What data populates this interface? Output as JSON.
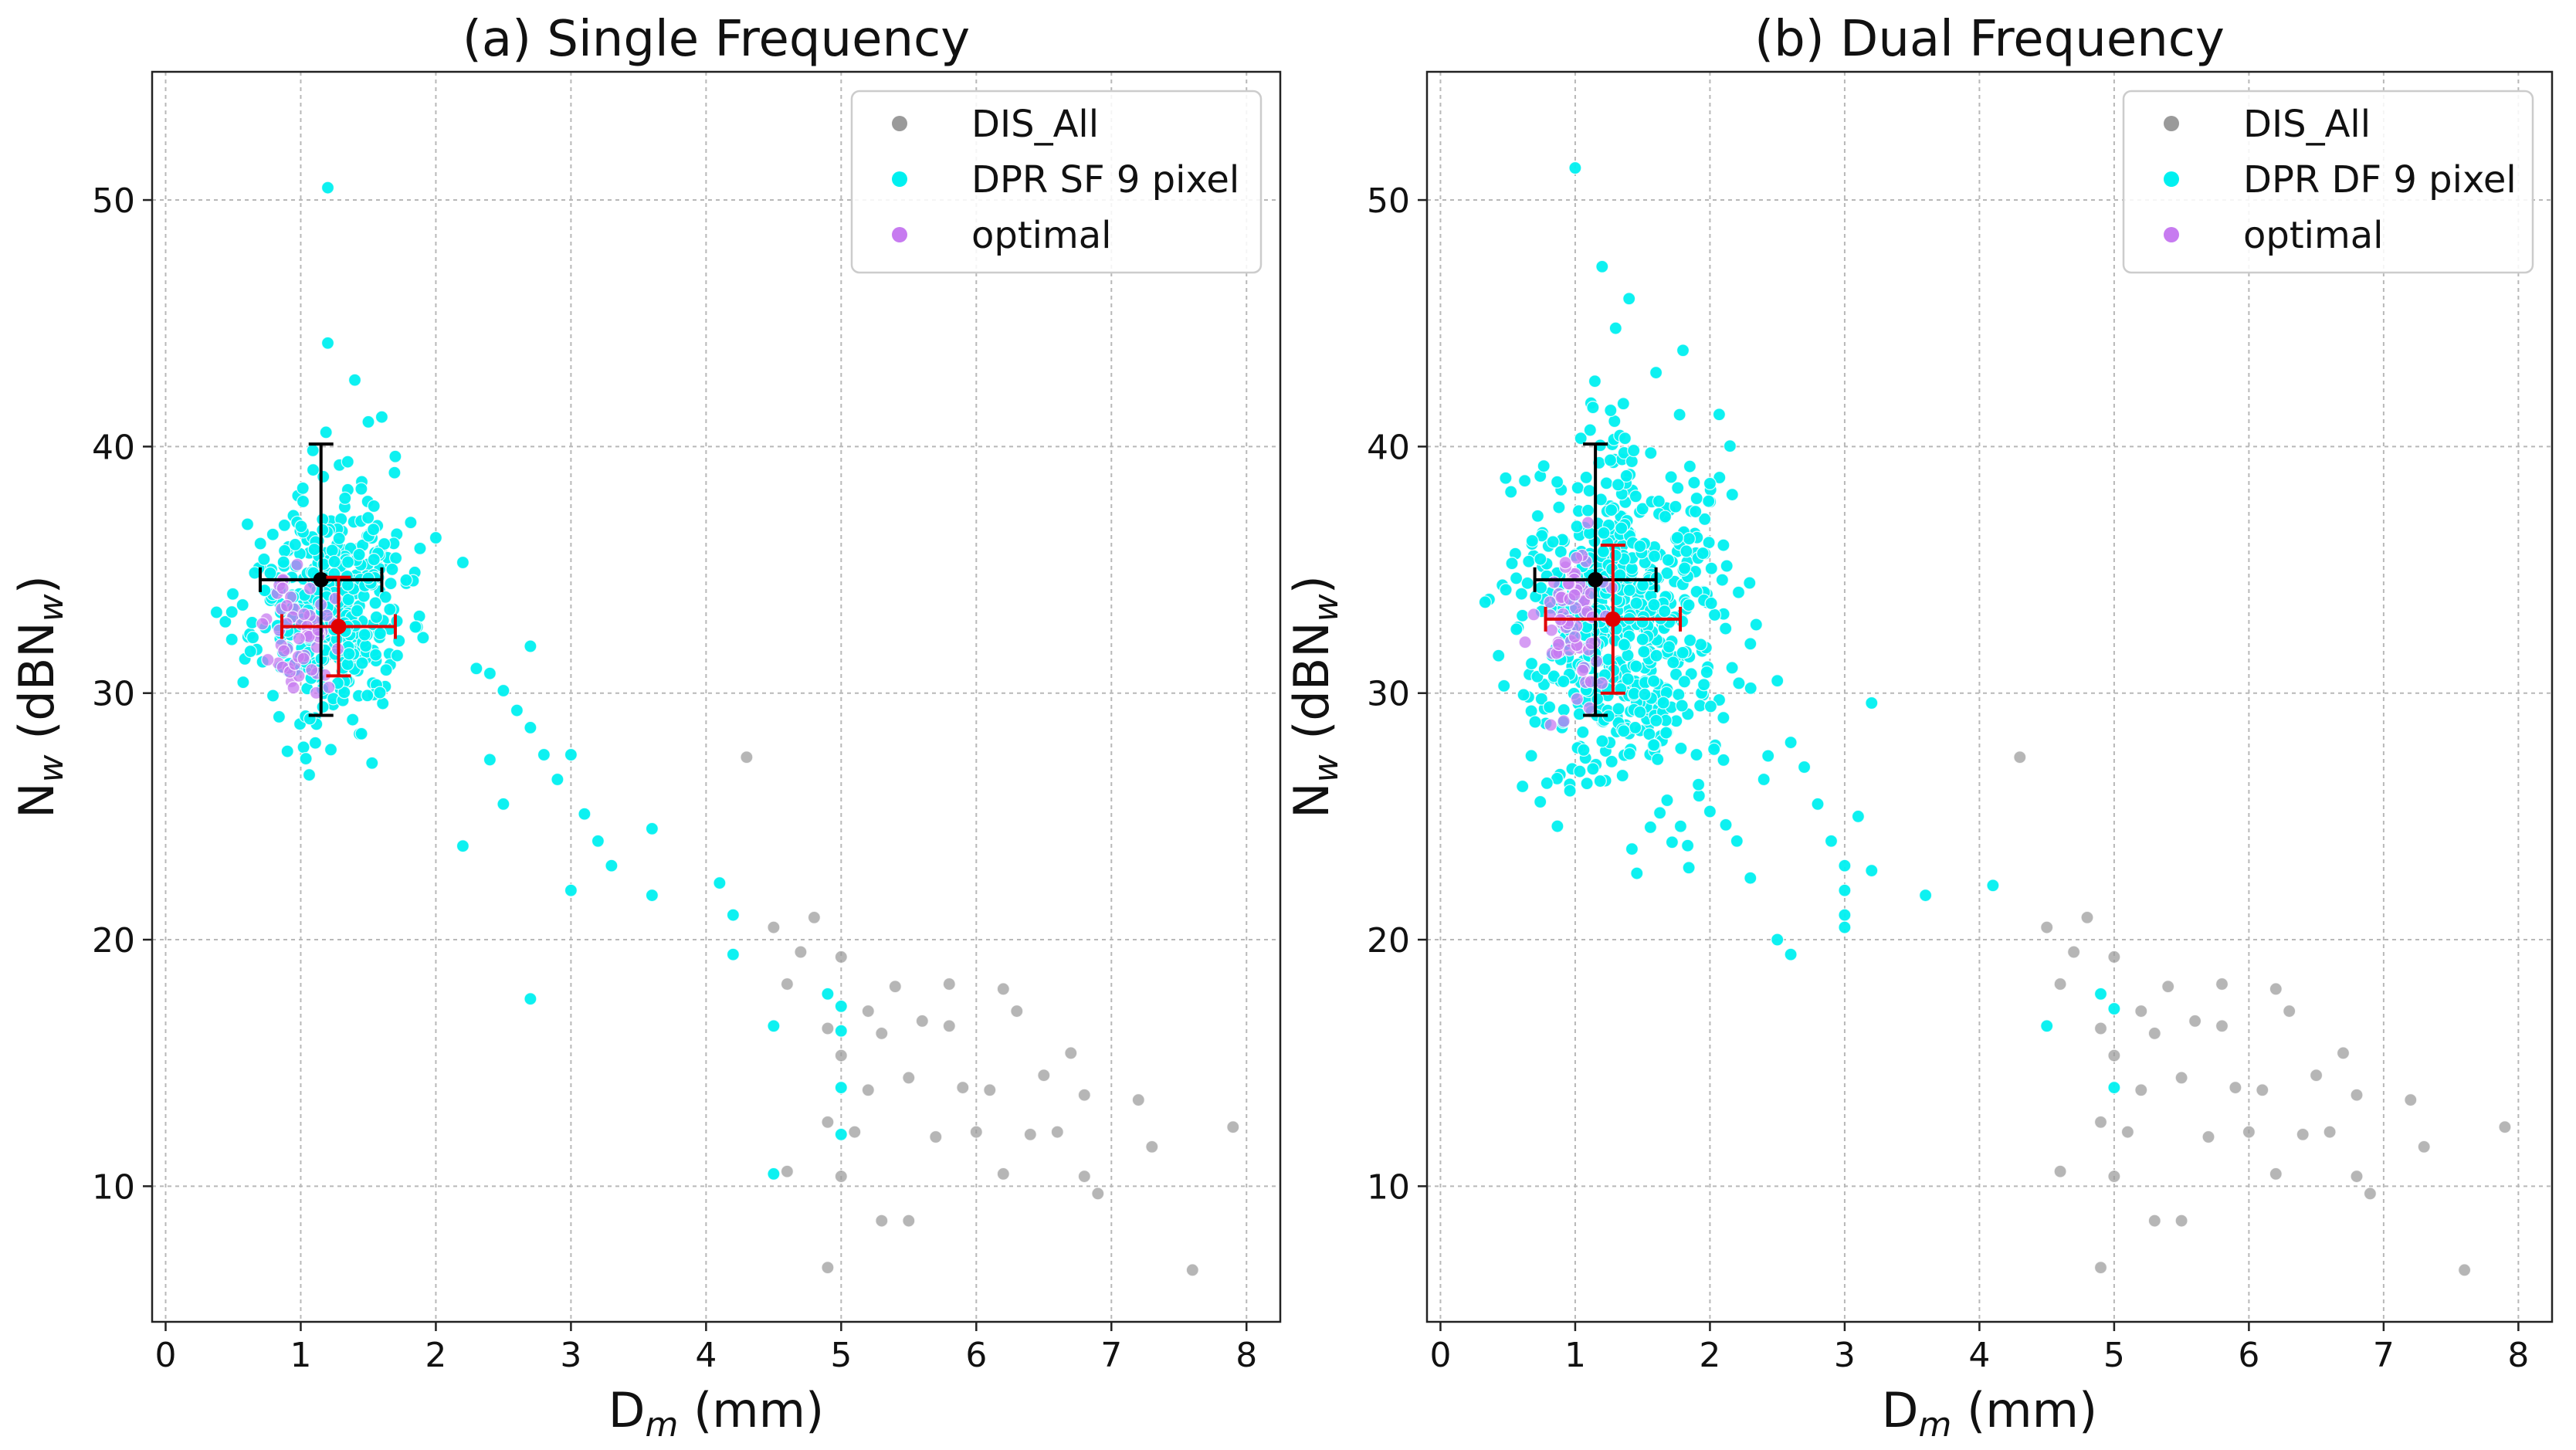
{
  "chart_data": [
    {
      "type": "scatter",
      "title": "(a) Single Frequency",
      "xlabel": {
        "main": "D",
        "sub": "m",
        "unit": " (mm)"
      },
      "ylabel": {
        "main": "N",
        "sub": "w",
        "mid": " (dBN",
        "sub2": "w",
        "end": ")"
      },
      "xlim": [
        -0.1,
        8.25
      ],
      "ylim": [
        4.5,
        55.2
      ],
      "xticks": [
        0,
        1,
        2,
        3,
        4,
        5,
        6,
        7,
        8
      ],
      "yticks": [
        10,
        20,
        30,
        40,
        50
      ],
      "grid": true,
      "legend_position": "top-right",
      "colors": {
        "DIS_All": "#9a9a9a",
        "dpr": "#00f0f0",
        "optimal": "#c77bf0",
        "mean_all": "#000000",
        "mean_dpr": "#e00000"
      },
      "series": [
        {
          "name": "DIS_All",
          "role": "DIS_All",
          "cloud": {
            "count": 9000,
            "dm_min": 0.35,
            "dm_max": 4.6,
            "seed": 11
          },
          "outliers": [
            [
              4.3,
              27.4
            ],
            [
              4.5,
              20.5
            ],
            [
              4.6,
              18.2
            ],
            [
              4.7,
              19.5
            ],
            [
              4.8,
              20.9
            ],
            [
              4.9,
              16.4
            ],
            [
              4.9,
              6.7
            ],
            [
              5.0,
              19.3
            ],
            [
              5.0,
              15.3
            ],
            [
              5.1,
              12.2
            ],
            [
              5.2,
              13.9
            ],
            [
              5.2,
              17.1
            ],
            [
              5.3,
              16.2
            ],
            [
              5.3,
              8.6
            ],
            [
              5.4,
              18.1
            ],
            [
              5.5,
              14.4
            ],
            [
              5.5,
              8.6
            ],
            [
              5.6,
              16.7
            ],
            [
              5.8,
              16.5
            ],
            [
              5.8,
              18.2
            ],
            [
              5.7,
              12.0
            ],
            [
              5.9,
              14.0
            ],
            [
              6.0,
              12.2
            ],
            [
              6.1,
              13.9
            ],
            [
              6.2,
              18.0
            ],
            [
              6.2,
              10.5
            ],
            [
              6.3,
              17.1
            ],
            [
              6.4,
              12.1
            ],
            [
              6.5,
              14.5
            ],
            [
              6.6,
              12.2
            ],
            [
              6.7,
              15.4
            ],
            [
              6.8,
              13.7
            ],
            [
              6.8,
              10.4
            ],
            [
              6.9,
              9.7
            ],
            [
              7.2,
              13.5
            ],
            [
              7.3,
              11.6
            ],
            [
              7.6,
              6.6
            ],
            [
              7.9,
              12.4
            ],
            [
              5.0,
              10.4
            ],
            [
              4.6,
              10.6
            ],
            [
              4.9,
              12.6
            ]
          ]
        },
        {
          "name": "DPR SF 9 pixel",
          "role": "dpr",
          "cloud": {
            "count": 420,
            "cx": 1.2,
            "cy": 33.5,
            "sx": 0.28,
            "sy": 2.3,
            "seed": 23
          },
          "points": [
            [
              1.2,
              50.5
            ],
            [
              1.2,
              44.2
            ],
            [
              1.4,
              42.7
            ],
            [
              1.5,
              41.0
            ],
            [
              1.6,
              41.2
            ],
            [
              1.7,
              39.6
            ],
            [
              2.0,
              36.3
            ],
            [
              2.2,
              35.3
            ],
            [
              2.3,
              31.0
            ],
            [
              2.4,
              30.8
            ],
            [
              2.5,
              30.1
            ],
            [
              2.6,
              29.3
            ],
            [
              2.7,
              31.9
            ],
            [
              2.7,
              28.6
            ],
            [
              2.8,
              27.5
            ],
            [
              2.9,
              26.5
            ],
            [
              3.0,
              27.5
            ],
            [
              3.1,
              25.1
            ],
            [
              3.2,
              24.0
            ],
            [
              3.3,
              23.0
            ],
            [
              3.6,
              24.5
            ],
            [
              3.6,
              21.8
            ],
            [
              3.0,
              22.0
            ],
            [
              2.5,
              25.5
            ],
            [
              2.2,
              23.8
            ],
            [
              4.1,
              22.3
            ],
            [
              4.2,
              21.0
            ],
            [
              4.2,
              19.4
            ],
            [
              4.5,
              16.5
            ],
            [
              4.5,
              10.5
            ],
            [
              4.9,
              17.8
            ],
            [
              5.0,
              17.3
            ],
            [
              5.0,
              16.3
            ],
            [
              5.0,
              14.0
            ],
            [
              5.0,
              12.1
            ],
            [
              2.7,
              17.6
            ],
            [
              2.4,
              27.3
            ]
          ]
        },
        {
          "name": "optimal",
          "role": "optimal",
          "cloud": {
            "count": 55,
            "cx": 1.0,
            "cy": 32.3,
            "sx": 0.12,
            "sy": 1.2,
            "seed": 37
          },
          "points": []
        }
      ],
      "error_bars": [
        {
          "role": "mean_all",
          "x": 1.15,
          "y": 34.6,
          "xerr": 0.45,
          "yerr": 5.5
        },
        {
          "role": "mean_dpr",
          "x": 1.28,
          "y": 32.7,
          "xerr": 0.42,
          "yerr": 2.0
        }
      ]
    },
    {
      "type": "scatter",
      "title": "(b) Dual Frequency",
      "xlabel": {
        "main": "D",
        "sub": "m",
        "unit": " (mm)"
      },
      "ylabel": {
        "main": "N",
        "sub": "w",
        "mid": " (dBN",
        "sub2": "w",
        "end": ")"
      },
      "xlim": [
        -0.1,
        8.25
      ],
      "ylim": [
        4.5,
        55.2
      ],
      "xticks": [
        0,
        1,
        2,
        3,
        4,
        5,
        6,
        7,
        8
      ],
      "yticks": [
        10,
        20,
        30,
        40,
        50
      ],
      "grid": true,
      "legend_position": "top-right",
      "colors": {
        "DIS_All": "#9a9a9a",
        "dpr": "#00f0f0",
        "optimal": "#c77bf0",
        "mean_all": "#000000",
        "mean_dpr": "#e00000"
      },
      "series": [
        {
          "name": "DIS_All",
          "role": "DIS_All",
          "cloud": {
            "count": 9000,
            "dm_min": 0.35,
            "dm_max": 4.6,
            "seed": 11
          },
          "outliers": [
            [
              4.3,
              27.4
            ],
            [
              4.5,
              20.5
            ],
            [
              4.6,
              18.2
            ],
            [
              4.7,
              19.5
            ],
            [
              4.8,
              20.9
            ],
            [
              4.9,
              16.4
            ],
            [
              4.9,
              6.7
            ],
            [
              5.0,
              19.3
            ],
            [
              5.0,
              15.3
            ],
            [
              5.1,
              12.2
            ],
            [
              5.2,
              13.9
            ],
            [
              5.2,
              17.1
            ],
            [
              5.3,
              16.2
            ],
            [
              5.3,
              8.6
            ],
            [
              5.4,
              18.1
            ],
            [
              5.5,
              14.4
            ],
            [
              5.5,
              8.6
            ],
            [
              5.6,
              16.7
            ],
            [
              5.8,
              16.5
            ],
            [
              5.8,
              18.2
            ],
            [
              5.7,
              12.0
            ],
            [
              5.9,
              14.0
            ],
            [
              6.0,
              12.2
            ],
            [
              6.1,
              13.9
            ],
            [
              6.2,
              18.0
            ],
            [
              6.2,
              10.5
            ],
            [
              6.3,
              17.1
            ],
            [
              6.4,
              12.1
            ],
            [
              6.5,
              14.5
            ],
            [
              6.6,
              12.2
            ],
            [
              6.7,
              15.4
            ],
            [
              6.8,
              13.7
            ],
            [
              6.8,
              10.4
            ],
            [
              6.9,
              9.7
            ],
            [
              7.2,
              13.5
            ],
            [
              7.3,
              11.6
            ],
            [
              7.6,
              6.6
            ],
            [
              7.9,
              12.4
            ],
            [
              5.0,
              10.4
            ],
            [
              4.6,
              10.6
            ],
            [
              4.9,
              12.6
            ]
          ]
        },
        {
          "name": "DPR DF 9 pixel",
          "role": "dpr",
          "cloud": {
            "count": 650,
            "cx": 1.35,
            "cy": 33.0,
            "sx": 0.38,
            "sy": 3.6,
            "seed": 41
          },
          "points": [
            [
              1.0,
              51.3
            ],
            [
              1.2,
              47.3
            ],
            [
              1.4,
              46.0
            ],
            [
              1.8,
              43.9
            ],
            [
              1.3,
              44.8
            ],
            [
              1.6,
              43.0
            ],
            [
              2.0,
              38.5
            ],
            [
              2.1,
              36.0
            ],
            [
              2.3,
              32.0
            ],
            [
              2.5,
              30.5
            ],
            [
              2.6,
              28.0
            ],
            [
              2.4,
              26.5
            ],
            [
              2.7,
              27.0
            ],
            [
              2.8,
              25.5
            ],
            [
              2.9,
              24.0
            ],
            [
              3.0,
              23.0
            ],
            [
              3.0,
              22.0
            ],
            [
              3.0,
              21.0
            ],
            [
              3.0,
              20.5
            ],
            [
              2.5,
              20.0
            ],
            [
              2.6,
              19.4
            ],
            [
              2.3,
              22.5
            ],
            [
              2.2,
              24.0
            ],
            [
              2.0,
              25.2
            ],
            [
              3.1,
              25.0
            ],
            [
              3.2,
              22.8
            ],
            [
              3.6,
              21.8
            ],
            [
              4.1,
              22.2
            ],
            [
              4.5,
              16.5
            ],
            [
              4.9,
              17.8
            ],
            [
              5.0,
              17.2
            ],
            [
              5.0,
              14.0
            ],
            [
              3.2,
              29.6
            ],
            [
              2.1,
              29.0
            ],
            [
              1.9,
              27.5
            ]
          ]
        },
        {
          "name": "optimal",
          "role": "optimal",
          "cloud": {
            "count": 70,
            "cx": 1.0,
            "cy": 33.0,
            "sx": 0.14,
            "sy": 1.8,
            "seed": 53
          },
          "points": []
        }
      ],
      "error_bars": [
        {
          "role": "mean_all",
          "x": 1.15,
          "y": 34.6,
          "xerr": 0.45,
          "yerr": 5.5
        },
        {
          "role": "mean_dpr",
          "x": 1.28,
          "y": 33.0,
          "xerr": 0.5,
          "yerr": 3.0
        }
      ]
    }
  ]
}
